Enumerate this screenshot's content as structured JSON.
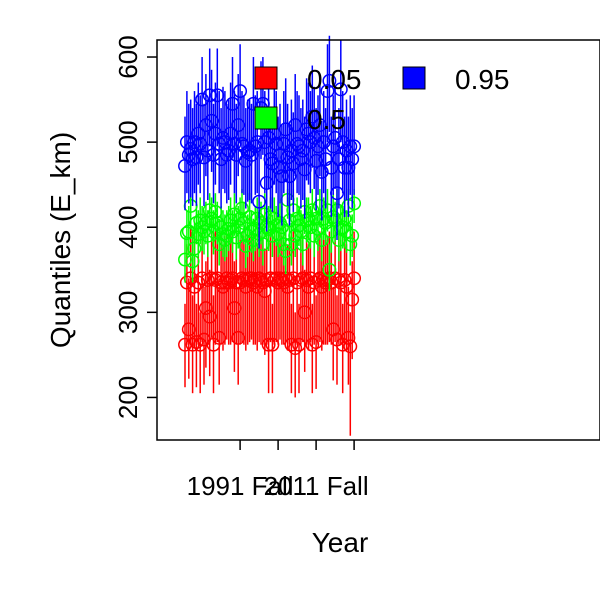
{
  "chart_data": {
    "type": "scatter",
    "xlabel": "Year",
    "ylabel": "Quantiles (E_km)",
    "ylim": [
      150,
      620
    ],
    "xlim": [
      -0.5,
      100.5
    ],
    "x_ticks": [
      {
        "pos": 29,
        "label": "1991 Fall"
      },
      {
        "pos": 49,
        "label": ""
      },
      {
        "pos": 69,
        "label": "2011 Fall"
      },
      {
        "pos": 89,
        "label": ""
      }
    ],
    "y_ticks": [
      {
        "value": 200,
        "label": "200"
      },
      {
        "value": 300,
        "label": "300"
      },
      {
        "value": 400,
        "label": "400"
      },
      {
        "value": 500,
        "label": "500"
      },
      {
        "value": 600,
        "label": "600"
      }
    ],
    "grid": false,
    "legend_position": "top",
    "legend": [
      {
        "label": "0.05",
        "color": "#ff0000"
      },
      {
        "label": "0.95",
        "color": "#0000ff"
      },
      {
        "label": "0.5",
        "color": "#00ff00"
      }
    ],
    "x_count": 90,
    "series": [
      {
        "name": "0.05",
        "color": "#ff0000",
        "values": [
          262,
          335,
          280,
          340,
          262,
          330,
          265,
          335,
          262,
          340,
          268,
          305,
          338,
          295,
          340,
          262,
          338,
          340,
          270,
          335,
          330,
          335,
          340,
          335,
          338,
          340,
          305,
          335,
          270,
          335,
          340,
          338,
          330,
          338,
          340,
          340,
          335,
          338,
          330,
          340,
          338,
          335,
          325,
          338,
          262,
          340,
          262,
          338,
          340,
          335,
          340,
          338,
          335,
          340,
          330,
          338,
          262,
          340,
          258,
          335,
          262,
          338,
          340,
          300,
          338,
          330,
          340,
          262,
          335,
          265,
          338,
          340,
          330,
          338,
          335,
          338,
          340,
          335,
          280,
          340,
          268,
          338,
          335,
          262,
          338,
          330,
          270,
          260,
          315,
          340
        ],
        "upper": [
          310,
          380,
          340,
          400,
          320,
          390,
          310,
          395,
          300,
          400,
          330,
          360,
          390,
          350,
          395,
          320,
          395,
          390,
          330,
          395,
          380,
          390,
          395,
          385,
          390,
          395,
          360,
          390,
          330,
          385,
          395,
          390,
          380,
          395,
          390,
          395,
          385,
          390,
          380,
          395,
          390,
          385,
          375,
          390,
          320,
          395,
          310,
          390,
          395,
          385,
          395,
          390,
          385,
          395,
          380,
          390,
          310,
          395,
          300,
          385,
          310,
          390,
          395,
          350,
          390,
          380,
          395,
          310,
          385,
          320,
          390,
          395,
          380,
          390,
          385,
          390,
          395,
          385,
          330,
          395,
          320,
          390,
          385,
          310,
          390,
          380,
          330,
          300,
          360,
          395
        ],
        "lower": [
          212,
          262,
          222,
          262,
          205,
          260,
          212,
          262,
          205,
          265,
          215,
          235,
          262,
          225,
          270,
          205,
          262,
          265,
          215,
          262,
          255,
          262,
          268,
          262,
          262,
          265,
          230,
          262,
          215,
          262,
          265,
          262,
          255,
          262,
          265,
          268,
          262,
          262,
          255,
          265,
          262,
          262,
          250,
          262,
          205,
          265,
          205,
          262,
          265,
          262,
          268,
          262,
          262,
          265,
          255,
          262,
          205,
          265,
          200,
          262,
          205,
          262,
          265,
          230,
          262,
          255,
          265,
          205,
          262,
          210,
          262,
          265,
          255,
          262,
          262,
          262,
          265,
          262,
          220,
          265,
          215,
          262,
          262,
          205,
          262,
          255,
          215,
          155,
          245,
          265
        ]
      },
      {
        "name": "0.5",
        "color": "#00ff00",
        "values": [
          362,
          393,
          395,
          425,
          360,
          375,
          405,
          392,
          408,
          400,
          395,
          405,
          390,
          420,
          410,
          395,
          418,
          405,
          380,
          400,
          392,
          385,
          390,
          398,
          408,
          395,
          415,
          388,
          400,
          410,
          422,
          405,
          378,
          390,
          412,
          395,
          385,
          398,
          410,
          392,
          405,
          380,
          415,
          400,
          398,
          412,
          390,
          410,
          402,
          392,
          405,
          400,
          380,
          372,
          432,
          408,
          380,
          420,
          390,
          410,
          402,
          395,
          380,
          418,
          408,
          410,
          400,
          420,
          390,
          410,
          398,
          425,
          385,
          410,
          405,
          420,
          350,
          395,
          412,
          408,
          420,
          385,
          398,
          400,
          410,
          395,
          425,
          380,
          390,
          428
        ],
        "upper": [
          390,
          420,
          425,
          440,
          395,
          405,
          430,
          420,
          435,
          425,
          420,
          430,
          420,
          440,
          435,
          420,
          440,
          430,
          410,
          425,
          420,
          415,
          420,
          425,
          435,
          420,
          440,
          415,
          425,
          435,
          445,
          430,
          405,
          415,
          440,
          420,
          410,
          425,
          435,
          420,
          430,
          410,
          440,
          425,
          425,
          435,
          415,
          435,
          425,
          420,
          430,
          425,
          410,
          400,
          445,
          435,
          405,
          445,
          415,
          435,
          425,
          420,
          405,
          440,
          435,
          435,
          425,
          445,
          415,
          435,
          420,
          445,
          410,
          435,
          430,
          445,
          380,
          420,
          440,
          430,
          445,
          410,
          425,
          425,
          435,
          420,
          445,
          405,
          415,
          445
        ],
        "lower": [
          335,
          365,
          368,
          400,
          335,
          350,
          380,
          365,
          380,
          372,
          368,
          380,
          365,
          395,
          385,
          368,
          395,
          380,
          355,
          375,
          365,
          360,
          365,
          372,
          382,
          370,
          390,
          362,
          375,
          385,
          400,
          380,
          352,
          365,
          388,
          370,
          360,
          372,
          385,
          365,
          380,
          355,
          390,
          375,
          372,
          388,
          365,
          385,
          378,
          365,
          380,
          375,
          355,
          345,
          410,
          382,
          355,
          395,
          365,
          385,
          378,
          370,
          355,
          392,
          382,
          385,
          375,
          395,
          365,
          385,
          372,
          400,
          360,
          385,
          380,
          395,
          325,
          370,
          388,
          382,
          395,
          360,
          372,
          375,
          385,
          370,
          400,
          355,
          365,
          405
        ]
      },
      {
        "name": "0.95",
        "color": "#0000ff",
        "values": [
          472,
          500,
          485,
          492,
          480,
          500,
          482,
          510,
          498,
          550,
          482,
          520,
          490,
          555,
          525,
          485,
          510,
          555,
          498,
          480,
          505,
          500,
          485,
          490,
          510,
          545,
          498,
          485,
          520,
          560,
          498,
          495,
          478,
          488,
          490,
          485,
          545,
          495,
          500,
          430,
          540,
          545,
          500,
          452,
          505,
          480,
          475,
          510,
          498,
          470,
          485,
          460,
          498,
          515,
          482,
          460,
          490,
          475,
          520,
          498,
          495,
          480,
          490,
          468,
          515,
          510,
          500,
          530,
          505,
          478,
          495,
          520,
          465,
          500,
          480,
          560,
          572,
          470,
          495,
          505,
          440,
          480,
          562,
          500,
          470,
          490,
          470,
          495,
          480,
          495
        ],
        "upper": [
          530,
          560,
          545,
          550,
          540,
          560,
          545,
          570,
          555,
          600,
          545,
          580,
          550,
          610,
          585,
          545,
          570,
          610,
          560,
          540,
          565,
          560,
          545,
          550,
          570,
          600,
          560,
          545,
          580,
          615,
          560,
          555,
          540,
          550,
          550,
          545,
          600,
          555,
          560,
          495,
          595,
          600,
          560,
          515,
          565,
          540,
          535,
          570,
          560,
          530,
          545,
          520,
          560,
          575,
          545,
          520,
          550,
          535,
          580,
          560,
          555,
          540,
          550,
          530,
          575,
          570,
          560,
          590,
          565,
          540,
          555,
          580,
          525,
          560,
          540,
          615,
          625,
          530,
          555,
          565,
          500,
          540,
          620,
          560,
          530,
          550,
          530,
          555,
          540,
          555
        ],
        "lower": [
          420,
          440,
          428,
          435,
          425,
          440,
          425,
          450,
          440,
          490,
          425,
          460,
          432,
          495,
          465,
          428,
          450,
          495,
          440,
          422,
          445,
          440,
          428,
          432,
          450,
          485,
          440,
          428,
          460,
          500,
          440,
          438,
          422,
          430,
          432,
          428,
          485,
          438,
          440,
          375,
          480,
          485,
          440,
          395,
          445,
          422,
          418,
          450,
          440,
          412,
          428,
          402,
          440,
          455,
          425,
          402,
          432,
          418,
          460,
          440,
          438,
          422,
          432,
          410,
          455,
          450,
          440,
          470,
          445,
          420,
          438,
          460,
          408,
          440,
          422,
          500,
          512,
          412,
          438,
          445,
          385,
          422,
          500,
          440,
          412,
          432,
          412,
          438,
          422,
          438
        ]
      }
    ]
  }
}
